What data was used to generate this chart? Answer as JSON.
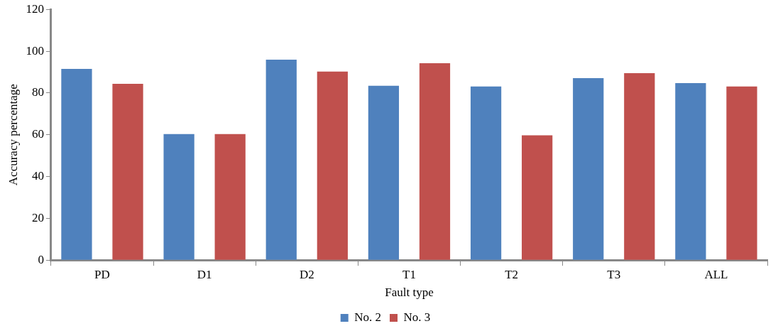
{
  "chart_data": {
    "type": "bar",
    "xlabel": "Fault type",
    "ylabel": "Accuracy percentage",
    "categories": [
      "PD",
      "D1",
      "D2",
      "T1",
      "T2",
      "T3",
      "ALL"
    ],
    "series": [
      {
        "name": "No. 2",
        "color": "#4f81bd",
        "values": [
          91.5,
          60.3,
          95.9,
          83.4,
          83.1,
          87.1,
          84.7
        ]
      },
      {
        "name": "No. 3",
        "color": "#c0504d",
        "values": [
          84.4,
          60.3,
          90.2,
          94.2,
          59.7,
          89.5,
          83.1
        ]
      }
    ],
    "ylim": [
      0,
      120
    ],
    "yticks": [
      0,
      20,
      40,
      60,
      80,
      100,
      120
    ],
    "grid": false,
    "legend": "bottom"
  }
}
